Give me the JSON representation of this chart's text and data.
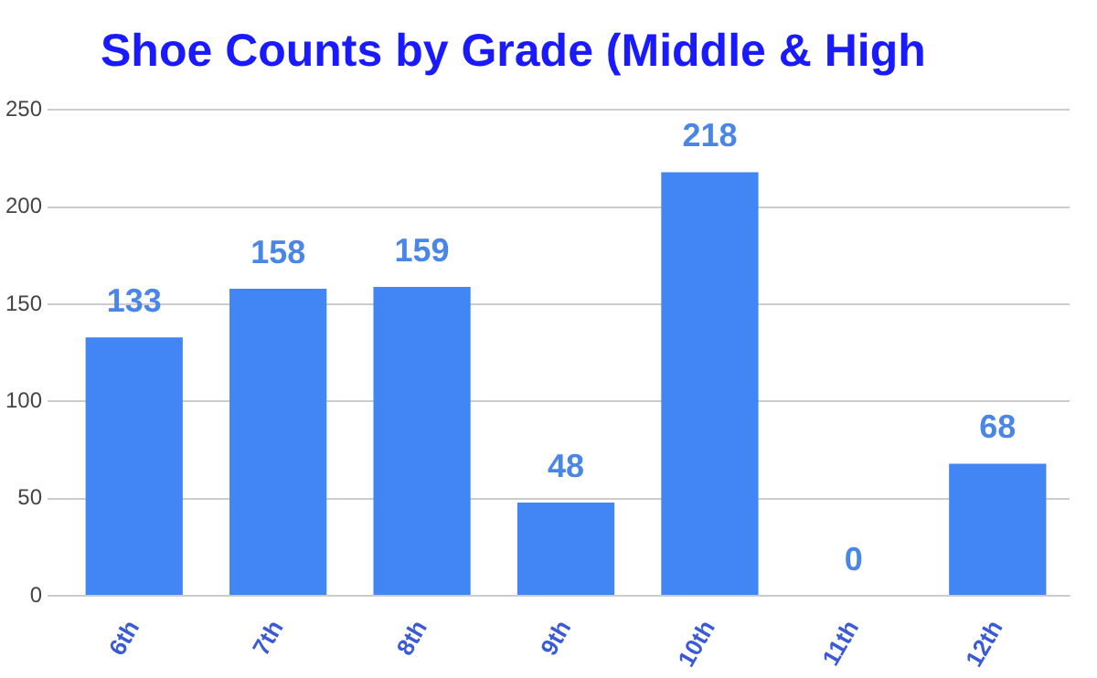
{
  "chart_data": {
    "type": "bar",
    "title": "Shoe Counts by Grade (Middle & High",
    "categories": [
      "6th",
      "7th",
      "8th",
      "9th",
      "10th",
      "11th",
      "12th"
    ],
    "values": [
      133,
      158,
      159,
      48,
      218,
      0,
      68
    ],
    "color": "#4285f4",
    "ylim": [
      0,
      250
    ],
    "yticks": [
      0,
      50,
      100,
      150,
      200,
      250
    ],
    "grid": true,
    "data_labels": true
  }
}
